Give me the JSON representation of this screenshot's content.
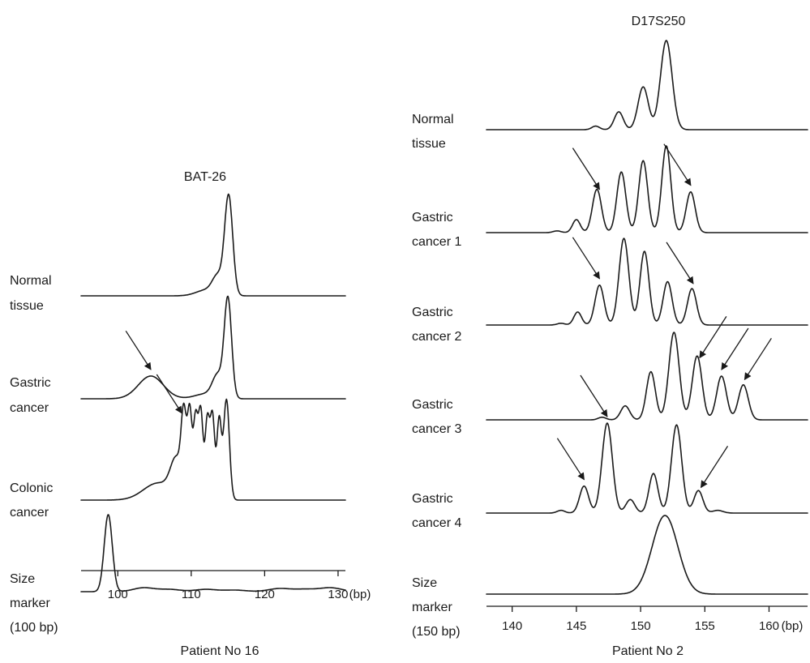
{
  "chart_data": [
    {
      "type": "line",
      "title": "BAT-26",
      "xlabel": "Patient No 16",
      "x_unit": "(bp)",
      "xlim": [
        95,
        131
      ],
      "xticks": [
        100,
        110,
        120,
        130
      ],
      "xtick_labels": [
        "100",
        "110",
        "120",
        "130"
      ],
      "grid": false,
      "traces": [
        {
          "label": [
            "Normal",
            "tissue"
          ],
          "peaks": [
            [
              111.5,
              0.015,
              1.2
            ],
            [
              113.6,
              0.17,
              0.7
            ],
            [
              115.1,
              1.0,
              0.55
            ],
            [
              112.5,
              0.05,
              1.5
            ]
          ],
          "arrows": []
        },
        {
          "label": [
            "Gastric",
            "cancer"
          ],
          "peaks": [
            [
              104.5,
              0.23,
              1.7
            ],
            [
              113.6,
              0.22,
              0.7
            ],
            [
              115.0,
              1.0,
              0.5
            ],
            [
              112.0,
              0.05,
              1.5
            ]
          ],
          "arrows": [
            104.5
          ]
        },
        {
          "label": [
            "Colonic",
            "cancer"
          ],
          "peaks": [
            [
              105.5,
              0.17,
              2.0
            ],
            [
              108.0,
              0.35,
              0.8
            ],
            [
              109.0,
              0.72,
              0.35
            ],
            [
              109.8,
              0.78,
              0.3
            ],
            [
              110.6,
              0.72,
              0.3
            ],
            [
              111.3,
              0.78,
              0.3
            ],
            [
              112.2,
              0.74,
              0.3
            ],
            [
              112.9,
              0.8,
              0.3
            ],
            [
              113.8,
              0.78,
              0.3
            ],
            [
              114.8,
              1.0,
              0.4
            ],
            [
              111.0,
              0.1,
              1.2
            ]
          ],
          "arrows": [
            108.7
          ]
        },
        {
          "label": [
            "Size",
            "marker",
            "(100 bp)"
          ],
          "peaks": [
            [
              98.7,
              1.0,
              0.55
            ],
            [
              103.5,
              0.05,
              1.4
            ],
            [
              107.0,
              0.03,
              1.5
            ],
            [
              112.0,
              0.03,
              1.5
            ],
            [
              116.0,
              0.02,
              1.5
            ],
            [
              122.0,
              0.04,
              1.5
            ],
            [
              125.5,
              0.03,
              1.5
            ],
            [
              129.0,
              0.05,
              1.5
            ]
          ],
          "arrows": []
        }
      ]
    },
    {
      "type": "line",
      "title": "D17S250",
      "xlabel": "Patient No 2",
      "x_unit": "(bp)",
      "xlim": [
        138,
        163
      ],
      "xticks": [
        140,
        145,
        150,
        155,
        160
      ],
      "xtick_labels": [
        "140",
        "145",
        "150",
        "155",
        "160"
      ],
      "grid": false,
      "traces": [
        {
          "label": [
            "Normal",
            "tissue"
          ],
          "peaks": [
            [
              146.5,
              0.04,
              0.3
            ],
            [
              148.3,
              0.2,
              0.35
            ],
            [
              150.2,
              0.48,
              0.4
            ],
            [
              152.0,
              1.0,
              0.45
            ]
          ],
          "arrows": []
        },
        {
          "label": [
            "Gastric",
            "cancer 1"
          ],
          "peaks": [
            [
              143.5,
              0.02,
              0.3
            ],
            [
              145.0,
              0.15,
              0.3
            ],
            [
              146.6,
              0.5,
              0.35
            ],
            [
              148.5,
              0.7,
              0.35
            ],
            [
              150.2,
              0.83,
              0.35
            ],
            [
              152.0,
              1.0,
              0.35
            ],
            [
              153.9,
              0.47,
              0.35
            ]
          ],
          "arrows": [
            146.8,
            153.9
          ]
        },
        {
          "label": [
            "Gastric",
            "cancer 2"
          ],
          "peaks": [
            [
              143.8,
              0.02,
              0.3
            ],
            [
              145.1,
              0.15,
              0.3
            ],
            [
              146.8,
              0.46,
              0.35
            ],
            [
              148.7,
              1.0,
              0.38
            ],
            [
              150.3,
              0.85,
              0.35
            ],
            [
              152.1,
              0.5,
              0.35
            ],
            [
              154.0,
              0.42,
              0.35
            ]
          ],
          "arrows": [
            146.8,
            154.1
          ]
        },
        {
          "label": [
            "Gastric",
            "cancer 3"
          ],
          "peaks": [
            [
              147.0,
              0.03,
              0.3
            ],
            [
              148.8,
              0.16,
              0.35
            ],
            [
              150.8,
              0.55,
              0.35
            ],
            [
              152.6,
              1.0,
              0.4
            ],
            [
              154.4,
              0.73,
              0.38
            ],
            [
              156.3,
              0.5,
              0.38
            ],
            [
              158.0,
              0.4,
              0.38
            ]
          ],
          "arrows": [
            154.6,
            156.3,
            158.1
          ]
        },
        {
          "label": [
            "Gastric",
            "cancer 4"
          ],
          "peaks": [
            [
              143.8,
              0.03,
              0.3
            ],
            [
              145.6,
              0.3,
              0.35
            ],
            [
              147.4,
              1.0,
              0.4
            ],
            [
              149.2,
              0.15,
              0.35
            ],
            [
              151.0,
              0.44,
              0.35
            ],
            [
              152.8,
              0.98,
              0.4
            ],
            [
              154.5,
              0.25,
              0.35
            ],
            [
              156.0,
              0.03,
              0.4
            ]
          ],
          "arrows": [
            145.6,
            147.4,
            154.7
          ]
        },
        {
          "label": [
            "Size",
            "marker",
            "(150 bp)"
          ],
          "peaks": [
            [
              151.9,
              1.0,
              1.0
            ]
          ],
          "arrows": []
        }
      ]
    }
  ]
}
